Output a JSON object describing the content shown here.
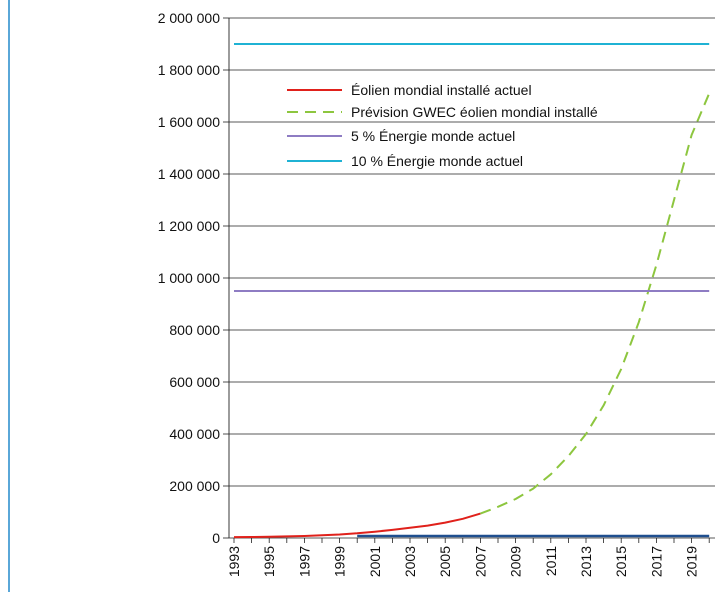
{
  "chart_data": {
    "type": "line",
    "title": "",
    "xlabel": "",
    "ylabel": "",
    "xlim": [
      1993,
      2020
    ],
    "ylim": [
      0,
      2000000
    ],
    "yticks": [
      {
        "value": 0,
        "label": "0"
      },
      {
        "value": 200000,
        "label": "200 000"
      },
      {
        "value": 400000,
        "label": "400 000"
      },
      {
        "value": 600000,
        "label": "600 000"
      },
      {
        "value": 800000,
        "label": "800 000"
      },
      {
        "value": 1000000,
        "label": "1 000 000"
      },
      {
        "value": 1200000,
        "label": "1 200 000"
      },
      {
        "value": 1400000,
        "label": "1 400 000"
      },
      {
        "value": 1600000,
        "label": "1 600 000"
      },
      {
        "value": 1800000,
        "label": "1 800 000"
      },
      {
        "value": 2000000,
        "label": "2 000 000"
      }
    ],
    "xticks_minor": [
      1993,
      1994,
      1995,
      1996,
      1997,
      1998,
      1999,
      2000,
      2001,
      2002,
      2003,
      2004,
      2005,
      2006,
      2007,
      2008,
      2009,
      2010,
      2011,
      2012,
      2013,
      2014,
      2015,
      2016,
      2017,
      2018,
      2019,
      2020
    ],
    "xtick_labels": [
      "1993",
      "1995",
      "1997",
      "1999",
      "2001",
      "2003",
      "2005",
      "2007",
      "2009",
      "2011",
      "2013",
      "2015",
      "2017",
      "2019"
    ],
    "grid": "horizontal",
    "legend_position": "top",
    "series": [
      {
        "name": "Éolien mondial installé actuel",
        "style": "solid",
        "color": "#e0211b",
        "points": [
          [
            1993,
            3500
          ],
          [
            1994,
            4000
          ],
          [
            1995,
            4800
          ],
          [
            1996,
            6100
          ],
          [
            1997,
            7600
          ],
          [
            1998,
            10200
          ],
          [
            1999,
            13600
          ],
          [
            2000,
            18000
          ],
          [
            2001,
            24300
          ],
          [
            2002,
            31200
          ],
          [
            2003,
            39400
          ],
          [
            2004,
            47600
          ],
          [
            2005,
            59100
          ],
          [
            2006,
            74000
          ],
          [
            2007,
            94000
          ]
        ]
      },
      {
        "name": "Prévision GWEC éolien mondial installé",
        "style": "dashed",
        "color": "#8dc63f",
        "points": [
          [
            2007,
            94000
          ],
          [
            2008,
            120000
          ],
          [
            2009,
            150000
          ],
          [
            2010,
            190000
          ],
          [
            2011,
            245000
          ],
          [
            2012,
            315000
          ],
          [
            2013,
            400000
          ],
          [
            2014,
            510000
          ],
          [
            2015,
            650000
          ],
          [
            2016,
            830000
          ],
          [
            2017,
            1050000
          ],
          [
            2018,
            1300000
          ],
          [
            2019,
            1550000
          ],
          [
            2020,
            1710000
          ]
        ]
      },
      {
        "name": "5 % Énergie monde actuel",
        "style": "solid",
        "color": "#8e7cc3",
        "points": [
          [
            1993,
            950000
          ],
          [
            2020,
            950000
          ]
        ]
      },
      {
        "name": "10 % Énergie monde actuel",
        "style": "solid",
        "color": "#1fb2d4",
        "points": [
          [
            1993,
            1900000
          ],
          [
            2020,
            1900000
          ]
        ]
      }
    ]
  }
}
